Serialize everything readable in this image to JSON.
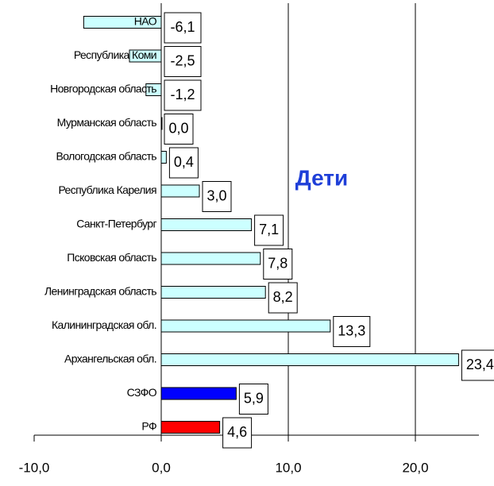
{
  "chart_data": {
    "type": "bar",
    "orientation": "horizontal",
    "title": "Дети",
    "categories": [
      "НАО",
      "Республика Коми",
      "Новгородская область",
      "Мурманская область",
      "Вологодская область",
      "Республика Карелия",
      "Санкт-Петербург",
      "Псковская область",
      "Ленинградская область",
      "Калининградская обл.",
      "Архангельская обл.",
      "СЗФО",
      "РФ"
    ],
    "values": [
      -6.1,
      -2.5,
      -1.2,
      0.0,
      0.4,
      3.0,
      7.1,
      7.8,
      8.2,
      13.3,
      23.4,
      5.9,
      4.6
    ],
    "value_labels": [
      "-6,1",
      "-2,5",
      "-1,2",
      "0,0",
      "0,4",
      "3,0",
      "7,1",
      "7,8",
      "8,2",
      "13,3",
      "23,4",
      "5,9",
      "4,6"
    ],
    "colors": [
      "#ccffff",
      "#ccffff",
      "#ccffff",
      "#ccffff",
      "#ccffff",
      "#ccffff",
      "#ccffff",
      "#ccffff",
      "#ccffff",
      "#ccffff",
      "#ccffff",
      "#0000ff",
      "#ff0000"
    ],
    "xlim": [
      -10,
      25
    ],
    "xticks": [
      {
        "value": -10,
        "label": "-10,0"
      },
      {
        "value": 0,
        "label": "0,0"
      },
      {
        "value": 10,
        "label": "10,0"
      },
      {
        "value": 20,
        "label": "20,0"
      }
    ],
    "grid": true
  }
}
